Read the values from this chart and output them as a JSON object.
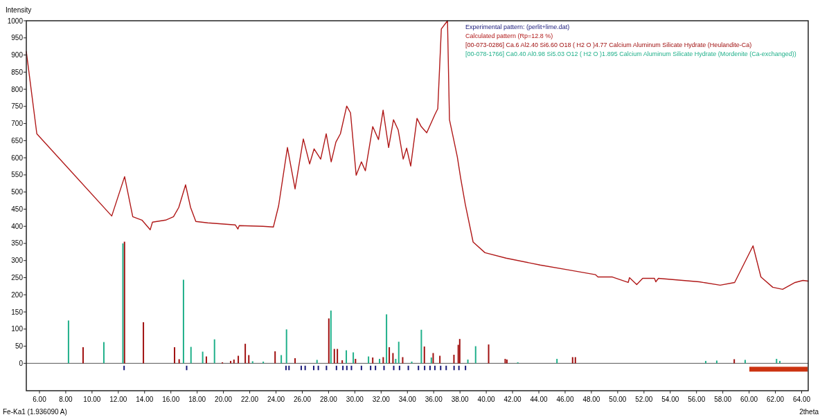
{
  "chart_data": {
    "type": "line",
    "ylabel": "Intensity",
    "xlabel": "2theta",
    "legend": "top right",
    "annotations": [
      "Fe-Ka1 (1.936090 A)"
    ],
    "xlim": [
      5,
      64.5
    ],
    "ylim": [
      -80,
      1000
    ],
    "xticks": [
      {
        "value": 6,
        "label": "6.00"
      },
      {
        "value": 8,
        "label": "8.00"
      },
      {
        "value": 10,
        "label": "10.00"
      },
      {
        "value": 12,
        "label": "12.00"
      },
      {
        "value": 14,
        "label": "14.00"
      },
      {
        "value": 16,
        "label": "16.00"
      },
      {
        "value": 18,
        "label": "18.00"
      },
      {
        "value": 20,
        "label": "20.00"
      },
      {
        "value": 22,
        "label": "22.00"
      },
      {
        "value": 24,
        "label": "24.00"
      },
      {
        "value": 26,
        "label": "26.00"
      },
      {
        "value": 28,
        "label": "28.00"
      },
      {
        "value": 30,
        "label": "30.00"
      },
      {
        "value": 32,
        "label": "32.00"
      },
      {
        "value": 34,
        "label": "34.00"
      },
      {
        "value": 36,
        "label": "36.00"
      },
      {
        "value": 38,
        "label": "38.00"
      },
      {
        "value": 40,
        "label": "40.00"
      },
      {
        "value": 42,
        "label": "42.00"
      },
      {
        "value": 44,
        "label": "44.00"
      },
      {
        "value": 46,
        "label": "46.00"
      },
      {
        "value": 48,
        "label": "48.00"
      },
      {
        "value": 50,
        "label": "50.00"
      },
      {
        "value": 52,
        "label": "52.00"
      },
      {
        "value": 54,
        "label": "54.00"
      },
      {
        "value": 56,
        "label": "56.00"
      },
      {
        "value": 58,
        "label": "58.00"
      },
      {
        "value": 60,
        "label": "60.00"
      },
      {
        "value": 62,
        "label": "62.00"
      },
      {
        "value": 64,
        "label": "64.00"
      }
    ],
    "yticks": [
      0,
      50,
      100,
      150,
      200,
      250,
      300,
      350,
      400,
      450,
      500,
      550,
      600,
      650,
      700,
      750,
      800,
      850,
      900,
      950,
      1000
    ],
    "series": [
      {
        "name": "Experimental pattern: (perlit+lime.dat)",
        "type": "bar",
        "color": "#1a1a7a",
        "x": [
          12.44,
          17.2,
          24.76,
          24.99,
          25.92,
          26.22,
          26.87,
          27.22,
          27.84,
          28.6,
          29.09,
          29.39,
          29.74,
          30.5,
          31.2,
          31.57,
          32.22,
          32.96,
          33.4,
          34.07,
          34.84,
          35.31,
          35.72,
          36.09,
          36.53,
          36.95,
          37.55,
          37.92,
          38.42
        ],
        "base": [
          -20,
          -20,
          -20,
          -20,
          -20,
          -20,
          -20,
          -20,
          -20,
          -20,
          -20,
          -20,
          -20,
          -20,
          -20,
          -20,
          -20,
          -20,
          -20,
          -20,
          -20,
          -20,
          -20,
          -20,
          -20,
          -20,
          -20,
          -20,
          -20
        ],
        "values": [
          13,
          13,
          13,
          13,
          13,
          13,
          13,
          13,
          13,
          13,
          13,
          13,
          13,
          13,
          13,
          13,
          13,
          13,
          13,
          13,
          13,
          13,
          13,
          13,
          13,
          13,
          13,
          13,
          13
        ]
      },
      {
        "name": "Calculated pattern (Rp=12.8 %)",
        "color": "#b01818",
        "x": [
          5.0,
          5.8,
          11.5,
          12.48,
          13.1,
          13.8,
          14.43,
          14.6,
          15.6,
          16.2,
          16.6,
          17.12,
          17.5,
          17.9,
          18.8,
          20.9,
          21.1,
          21.2,
          23.0,
          23.8,
          24.2,
          24.87,
          25.45,
          26.08,
          26.56,
          26.9,
          27.4,
          27.82,
          28.2,
          28.56,
          28.9,
          29.38,
          29.67,
          30.1,
          30.5,
          30.8,
          31.36,
          31.8,
          32.15,
          32.57,
          32.94,
          33.3,
          33.68,
          33.94,
          34.25,
          34.73,
          35.05,
          35.47,
          36.1,
          36.31,
          36.58,
          37.05,
          37.2,
          37.5,
          37.8,
          38.05,
          38.4,
          39.0,
          39.9,
          41.5,
          44.1,
          46.2,
          48.3,
          48.5,
          49.6,
          50.8,
          50.9,
          51.45,
          51.9,
          52.8,
          52.9,
          53.1,
          56.2,
          57.8,
          58.9,
          60.3,
          60.9,
          61.8,
          62.55,
          63.5,
          64.1,
          64.5
        ],
        "values": [
          910,
          670,
          430,
          545,
          428,
          418,
          390,
          412,
          418,
          428,
          455,
          521,
          455,
          414,
          410,
          404,
          392,
          402,
          400,
          398,
          460,
          630,
          509,
          655,
          582,
          626,
          596,
          670,
          588,
          646,
          670,
          751,
          731,
          549,
          588,
          562,
          691,
          653,
          739,
          630,
          711,
          681,
          596,
          628,
          576,
          715,
          691,
          673,
          727,
          743,
          976,
          1000,
          711,
          657,
          602,
          541,
          465,
          354,
          323,
          307,
          287,
          273,
          259,
          252,
          252,
          236,
          250,
          230,
          248,
          248,
          238,
          248,
          238,
          228,
          236,
          343,
          252,
          222,
          216,
          236,
          242,
          240
        ]
      },
      {
        "name": "[00-073-0286] Ca.6 Al2.40 Si6.60 O18 ( H2 O )4.77 Calcium Aluminum Silicate Hydrate (Heulandite-Ca)",
        "type": "bar",
        "color": "#a01010",
        "x": [
          9.32,
          12.47,
          13.91,
          16.28,
          16.63,
          18.7,
          19.92,
          20.55,
          20.8,
          21.13,
          21.66,
          21.93,
          23.93,
          25.45,
          28.02,
          28.44,
          28.67,
          29.04,
          30.05,
          31.36,
          32.16,
          32.62,
          32.9,
          33.64,
          35.29,
          35.96,
          36.47,
          37.54,
          37.87,
          37.98,
          40.18,
          41.44,
          41.57,
          46.57,
          46.78,
          58.87
        ],
        "values": [
          47,
          355,
          120,
          47,
          12,
          20,
          3,
          7,
          11,
          22,
          57,
          24,
          35,
          15,
          131,
          42,
          42,
          9,
          13,
          17,
          18,
          47,
          30,
          18,
          49,
          30,
          22,
          25,
          54,
          71,
          55,
          13,
          11,
          18,
          18,
          12
        ]
      },
      {
        "name": "[00-078-1766] Ca0.40 Al0.98 Si5.03 O12 ( H2 O )1.895 Calcium Aluminum Silicate Hydrate (Mordenite (Ca-exchanged))",
        "type": "bar",
        "color": "#20b08a",
        "x": [
          8.21,
          10.9,
          12.35,
          16.96,
          17.53,
          18.42,
          19.32,
          22.22,
          23.03,
          24.4,
          24.8,
          27.12,
          28.18,
          29.35,
          29.88,
          31.04,
          31.88,
          32.41,
          33.11,
          33.34,
          34.33,
          35.06,
          35.82,
          38.6,
          39.19,
          42.4,
          45.38,
          56.7,
          57.54,
          59.7,
          62.09,
          62.34
        ],
        "values": [
          125,
          62,
          350,
          244,
          48,
          34,
          70,
          6,
          5,
          24,
          99,
          10,
          154,
          38,
          32,
          20,
          13,
          143,
          13,
          63,
          5,
          98,
          17,
          11,
          50,
          3,
          13,
          7,
          8,
          10,
          13,
          7
        ]
      }
    ]
  }
}
